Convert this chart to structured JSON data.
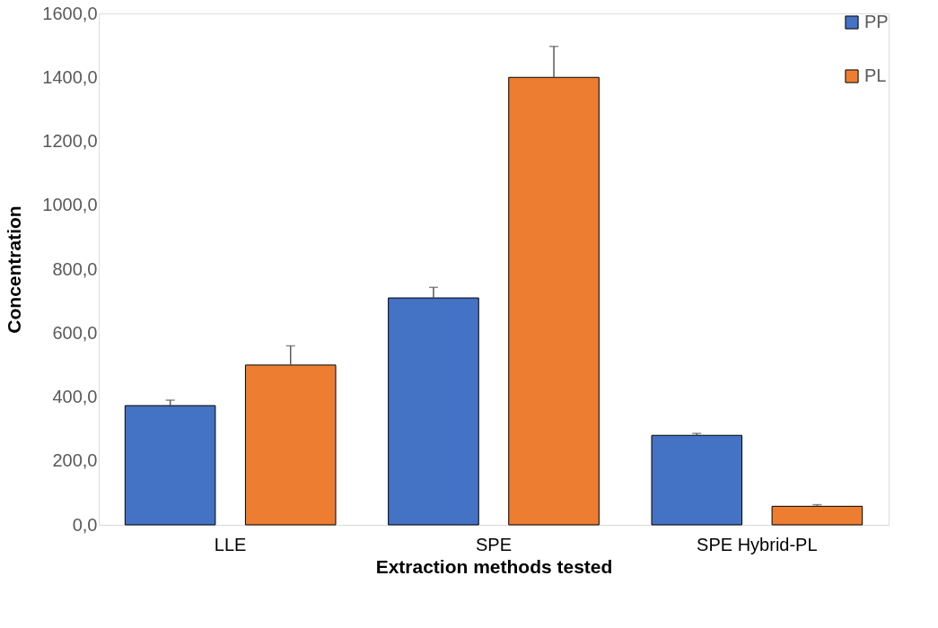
{
  "chart_data": {
    "type": "bar",
    "xlabel": "Extraction methods tested",
    "ylabel": "Concentration",
    "categories": [
      "LLE",
      "SPE",
      "SPE Hybrid-PL"
    ],
    "series": [
      {
        "name": "PP",
        "color": "#4472c4",
        "values": [
          373,
          710,
          280
        ],
        "errors": [
          [
            373,
            390
          ],
          [
            710,
            743
          ],
          [
            280,
            286
          ]
        ]
      },
      {
        "name": "PL",
        "color": "#ed7d31",
        "values": [
          500,
          1400,
          58
        ],
        "errors": [
          [
            500,
            560
          ],
          [
            1400,
            1497
          ],
          [
            58,
            63
          ]
        ]
      }
    ],
    "ylim": [
      0,
      1600
    ],
    "yticks": [
      {
        "value": 0,
        "label": "0,0"
      },
      {
        "value": 200,
        "label": "200,0"
      },
      {
        "value": 400,
        "label": "400,0"
      },
      {
        "value": 600,
        "label": "600,0"
      },
      {
        "value": 800,
        "label": "800,0"
      },
      {
        "value": 1000,
        "label": "1000,0"
      },
      {
        "value": 1200,
        "label": "1200,0"
      },
      {
        "value": 1400,
        "label": "1400,0"
      },
      {
        "value": 1600,
        "label": "1600,0"
      }
    ],
    "grid": false,
    "legend": "top right"
  }
}
